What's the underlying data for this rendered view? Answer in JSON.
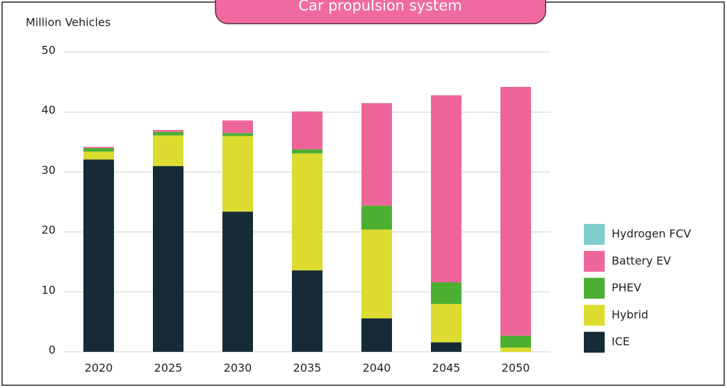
{
  "chart_data": {
    "type": "stacked_bar",
    "title": "Car propulsion system",
    "y_label": "Million Vehicles",
    "categories": [
      "2020",
      "2025",
      "2030",
      "2035",
      "2040",
      "2045",
      "2050"
    ],
    "series": [
      {
        "name": "ICE",
        "color": "#172b36",
        "values": [
          32.1,
          31.0,
          23.4,
          13.6,
          5.6,
          1.6,
          0
        ]
      },
      {
        "name": "Hybrid",
        "color": "#dcdc30",
        "values": [
          1.3,
          5.1,
          12.6,
          19.5,
          14.8,
          6.4,
          0.7
        ]
      },
      {
        "name": "PHEV",
        "color": "#4caf32",
        "values": [
          0.6,
          0.6,
          0.5,
          0.7,
          4.0,
          3.6,
          2.0
        ]
      },
      {
        "name": "Battery EV",
        "color": "#ee6699",
        "values": [
          0.2,
          0.3,
          2.1,
          6.3,
          17.1,
          31.2,
          41.5
        ]
      },
      {
        "name": "Hydrogen FCV",
        "color": "#7fcdcd",
        "values": [
          0,
          0,
          0,
          0,
          0,
          0,
          0
        ]
      }
    ],
    "ylim": [
      0,
      50
    ],
    "yticks": [
      0,
      10,
      20,
      30,
      40,
      50
    ],
    "grid": true,
    "legend": "right"
  }
}
